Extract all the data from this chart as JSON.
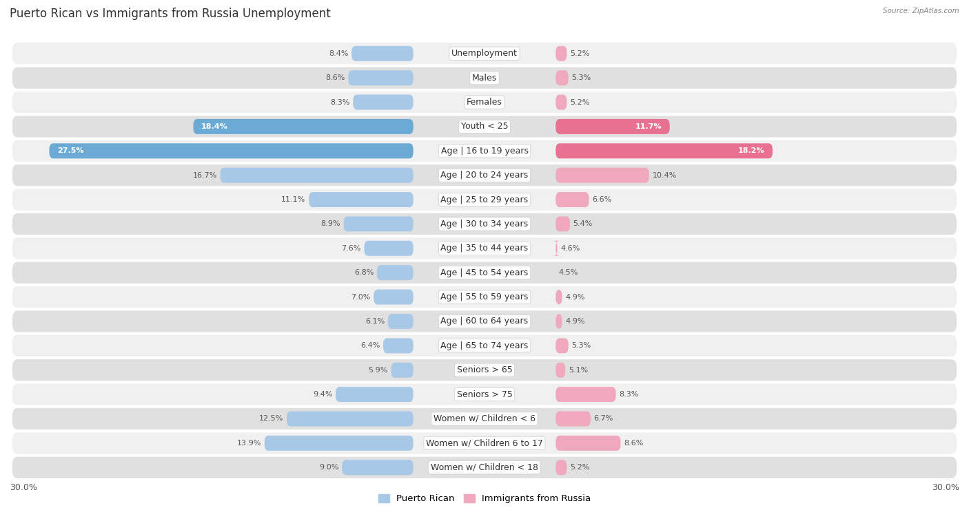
{
  "title": "Puerto Rican vs Immigrants from Russia Unemployment",
  "source": "Source: ZipAtlas.com",
  "categories": [
    "Unemployment",
    "Males",
    "Females",
    "Youth < 25",
    "Age | 16 to 19 years",
    "Age | 20 to 24 years",
    "Age | 25 to 29 years",
    "Age | 30 to 34 years",
    "Age | 35 to 44 years",
    "Age | 45 to 54 years",
    "Age | 55 to 59 years",
    "Age | 60 to 64 years",
    "Age | 65 to 74 years",
    "Seniors > 65",
    "Seniors > 75",
    "Women w/ Children < 6",
    "Women w/ Children 6 to 17",
    "Women w/ Children < 18"
  ],
  "puerto_rican": [
    8.4,
    8.6,
    8.3,
    18.4,
    27.5,
    16.7,
    11.1,
    8.9,
    7.6,
    6.8,
    7.0,
    6.1,
    6.4,
    5.9,
    9.4,
    12.5,
    13.9,
    9.0
  ],
  "russia": [
    5.2,
    5.3,
    5.2,
    11.7,
    18.2,
    10.4,
    6.6,
    5.4,
    4.6,
    4.5,
    4.9,
    4.9,
    5.3,
    5.1,
    8.3,
    6.7,
    8.6,
    5.2
  ],
  "puerto_rican_color_normal": "#a8c8e8",
  "puerto_rican_color_highlight": "#6aaad4",
  "russia_color_normal": "#f0a8bc",
  "russia_color_highlight": "#e87090",
  "row_bg_light": "#f0f0f0",
  "row_bg_dark": "#e0e0e0",
  "max_value": 30.0,
  "legend_puerto_rican": "Puerto Rican",
  "legend_russia": "Immigrants from Russia",
  "title_fontsize": 12,
  "label_fontsize": 9,
  "value_fontsize": 8,
  "highlight_threshold_pr": 18.0,
  "highlight_threshold_ru": 11.0
}
